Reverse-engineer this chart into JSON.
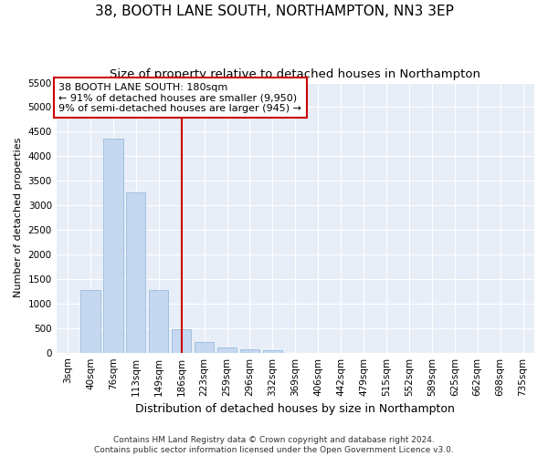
{
  "title": "38, BOOTH LANE SOUTH, NORTHAMPTON, NN3 3EP",
  "subtitle": "Size of property relative to detached houses in Northampton",
  "xlabel": "Distribution of detached houses by size in Northampton",
  "ylabel": "Number of detached properties",
  "categories": [
    "3sqm",
    "40sqm",
    "76sqm",
    "113sqm",
    "149sqm",
    "186sqm",
    "223sqm",
    "259sqm",
    "296sqm",
    "332sqm",
    "369sqm",
    "406sqm",
    "442sqm",
    "479sqm",
    "515sqm",
    "552sqm",
    "589sqm",
    "625sqm",
    "662sqm",
    "698sqm",
    "735sqm"
  ],
  "bar_heights": [
    0,
    1270,
    4350,
    3270,
    1280,
    480,
    225,
    100,
    60,
    50,
    0,
    0,
    0,
    0,
    0,
    0,
    0,
    0,
    0,
    0,
    0
  ],
  "bar_color": "#c5d8f0",
  "bar_edge_color": "#8ab4d8",
  "vertical_line_index": 5,
  "vertical_line_color": "#cc0000",
  "ylim": [
    0,
    5500
  ],
  "yticks": [
    0,
    500,
    1000,
    1500,
    2000,
    2500,
    3000,
    3500,
    4000,
    4500,
    5000,
    5500
  ],
  "annotation_title": "38 BOOTH LANE SOUTH: 180sqm",
  "annotation_line1": "← 91% of detached houses are smaller (9,950)",
  "annotation_line2": "9% of semi-detached houses are larger (945) →",
  "annotation_box_color": "#cc0000",
  "footer_line1": "Contains HM Land Registry data © Crown copyright and database right 2024.",
  "footer_line2": "Contains public sector information licensed under the Open Government Licence v3.0.",
  "background_color": "#e8eef8",
  "grid_color": "#ffffff",
  "title_fontsize": 11,
  "subtitle_fontsize": 9.5,
  "ylabel_fontsize": 8,
  "xlabel_fontsize": 9,
  "tick_fontsize": 7.5,
  "footer_fontsize": 6.5,
  "ann_fontsize": 8
}
